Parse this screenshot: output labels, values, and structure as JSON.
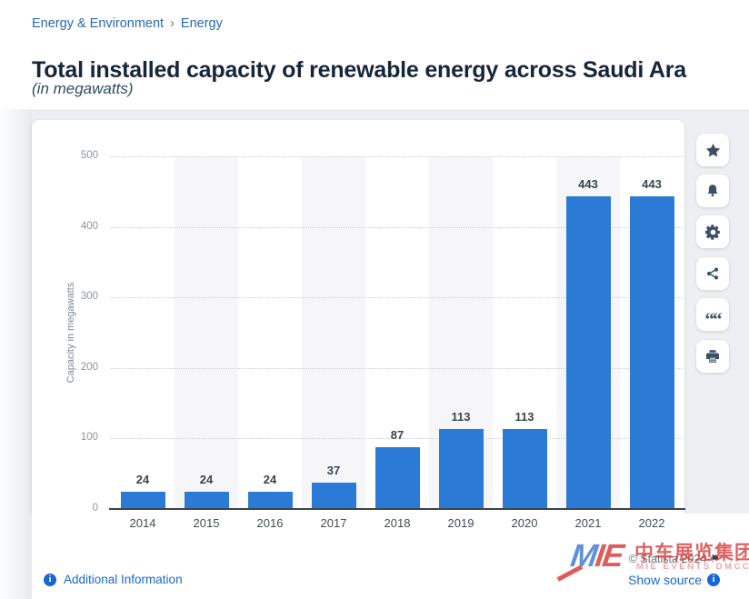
{
  "breadcrumb": {
    "items": [
      "Energy & Environment",
      "Energy"
    ],
    "separator": "›"
  },
  "header": {
    "title": "Total installed capacity of renewable energy across Saudi Ara",
    "subtitle": "(in megawatts)"
  },
  "chart_data": {
    "type": "bar",
    "title": "Total installed capacity of renewable energy across Saudi Arabia",
    "categories": [
      "2014",
      "2015",
      "2016",
      "2017",
      "2018",
      "2019",
      "2020",
      "2021",
      "2022"
    ],
    "values": [
      24,
      24,
      24,
      37,
      87,
      113,
      113,
      443,
      443
    ],
    "xlabel": "",
    "ylabel": "Capacity in megawatts",
    "ylim": [
      0,
      500
    ],
    "yticks": [
      0,
      100,
      200,
      300,
      400,
      500
    ],
    "grid": "dotted horizontal",
    "legend_position": "none",
    "bar_color": "#2b7ad6",
    "band_color": "#f6f6f8"
  },
  "toolbar": {
    "buttons": [
      "favorite",
      "notifications",
      "settings",
      "share",
      "cite",
      "print"
    ]
  },
  "footer": {
    "copyright": "© Statista 2024",
    "show_source_label": "Show source",
    "additional_info_label": "Additional Information"
  },
  "watermark": {
    "logo_m": "M",
    "logo_ie": "IE",
    "cn_text": "中车展览集团",
    "sub_text": "MIE  EVENTS  DMCC"
  },
  "colors": {
    "accent_blue": "#2b7ad6",
    "link_blue": "#1a67d2",
    "title_navy": "#16263a",
    "watermark_red": "#d84040"
  }
}
